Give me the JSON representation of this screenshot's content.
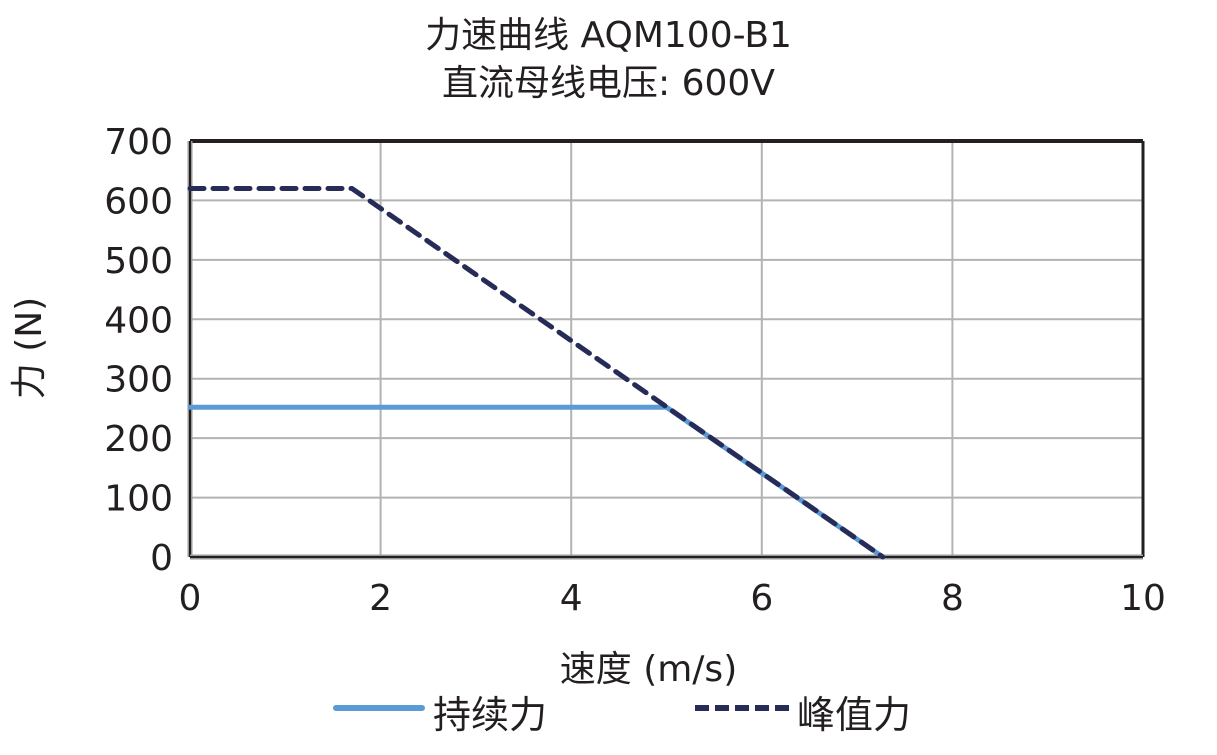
{
  "chart_data": {
    "type": "line",
    "title": "力速曲线 AQM100-B1",
    "subtitle": "直流母线电压: 600V",
    "xlabel": "速度 (m/s)",
    "ylabel": "力 (N)",
    "xlim": [
      0,
      10
    ],
    "ylim": [
      0,
      700
    ],
    "xticks": [
      0,
      2,
      4,
      6,
      8,
      10
    ],
    "yticks": [
      0,
      100,
      200,
      300,
      400,
      500,
      600,
      700
    ],
    "grid": true,
    "legend_position": "bottom",
    "series": [
      {
        "name": "持续力",
        "style": "solid",
        "color": "#5b9bd5",
        "x": [
          0,
          5.0,
          7.27
        ],
        "y": [
          252,
          252,
          0
        ]
      },
      {
        "name": "峰值力",
        "style": "dashed",
        "color": "#262b57",
        "x": [
          0,
          1.7,
          7.27
        ],
        "y": [
          620,
          620,
          0
        ]
      }
    ]
  },
  "labels": {
    "title": "力速曲线 AQM100-B1",
    "subtitle": "直流母线电压: 600V",
    "xlabel": "速度 (m/s)",
    "ylabel": "力 (N)",
    "legend_continuous": "持续力",
    "legend_peak": "峰值力"
  }
}
